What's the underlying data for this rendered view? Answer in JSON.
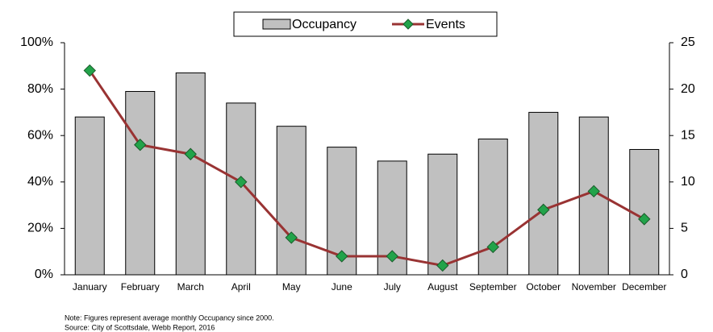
{
  "chart_data": {
    "type": "bar_line",
    "categories": [
      "January",
      "February",
      "March",
      "April",
      "May",
      "June",
      "July",
      "August",
      "September",
      "October",
      "November",
      "December"
    ],
    "series": [
      {
        "name": "Occupancy",
        "type": "bar",
        "color": "#c0c0c0",
        "values": [
          68,
          79,
          87,
          74,
          64,
          55,
          49,
          52,
          58.5,
          70,
          68,
          54
        ]
      },
      {
        "name": "Events",
        "type": "line",
        "axis": "y2",
        "color": "#993333",
        "marker_color": "#22a34a",
        "values": [
          22,
          14,
          13,
          10,
          4,
          2,
          2,
          1,
          3,
          7,
          9,
          6
        ]
      }
    ],
    "ylim": [
      0,
      100
    ],
    "yticks": [
      {
        "value": 0,
        "label": "0%"
      },
      {
        "value": 20,
        "label": "20%"
      },
      {
        "value": 40,
        "label": "40%"
      },
      {
        "value": 60,
        "label": "60%"
      },
      {
        "value": 80,
        "label": "80%"
      },
      {
        "value": 100,
        "label": "100%"
      }
    ],
    "y2lim": [
      0,
      25
    ],
    "y2ticks": [
      0,
      5,
      10,
      15,
      20,
      25
    ],
    "grid": false,
    "legend": "top",
    "notes": [
      "Note:  Figures represent average monthly Occupancy since 2000.",
      "Source:  City of Scottsdale, Webb Report, 2016"
    ]
  }
}
